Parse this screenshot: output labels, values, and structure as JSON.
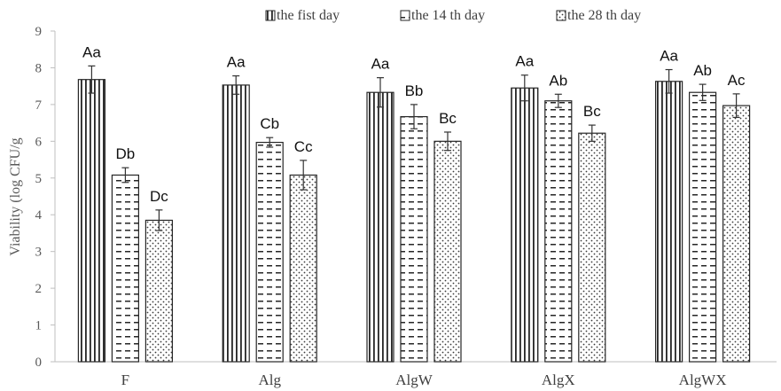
{
  "chart_data": {
    "type": "bar",
    "title": "",
    "xlabel": "",
    "ylabel": "Viability (log CFU/g",
    "ylim": [
      0,
      9
    ],
    "yticks": [
      0,
      1,
      2,
      3,
      4,
      5,
      6,
      7,
      8,
      9
    ],
    "grid": false,
    "legend_position": "top",
    "categories": [
      "F",
      "Alg",
      "AlgW",
      "AlgX",
      "AlgWX"
    ],
    "series": [
      {
        "name": "the fist day",
        "pattern": "vertical-lines",
        "values": [
          7.68,
          7.53,
          7.33,
          7.45,
          7.63
        ],
        "errors": [
          0.37,
          0.25,
          0.4,
          0.35,
          0.32
        ],
        "labels": [
          "Aa",
          "Aa",
          "Aa",
          "Aa",
          "Aa"
        ]
      },
      {
        "name": "the 14 th day",
        "pattern": "horizontal-dashes",
        "values": [
          5.08,
          5.97,
          6.67,
          7.1,
          7.33
        ],
        "errors": [
          0.2,
          0.13,
          0.33,
          0.18,
          0.22
        ],
        "labels": [
          "Db",
          "Cb",
          "Bb",
          "Ab",
          "Ab"
        ]
      },
      {
        "name": "the 28 th day",
        "pattern": "dots",
        "values": [
          3.85,
          5.08,
          6.0,
          6.22,
          6.97
        ],
        "errors": [
          0.28,
          0.4,
          0.25,
          0.22,
          0.32
        ],
        "labels": [
          "Dc",
          "Cc",
          "Bc",
          "Bc",
          "Ac"
        ]
      }
    ],
    "colors": {
      "bar_stroke": "#262626",
      "axis": "#bfbfbf",
      "text": "#595959"
    }
  }
}
